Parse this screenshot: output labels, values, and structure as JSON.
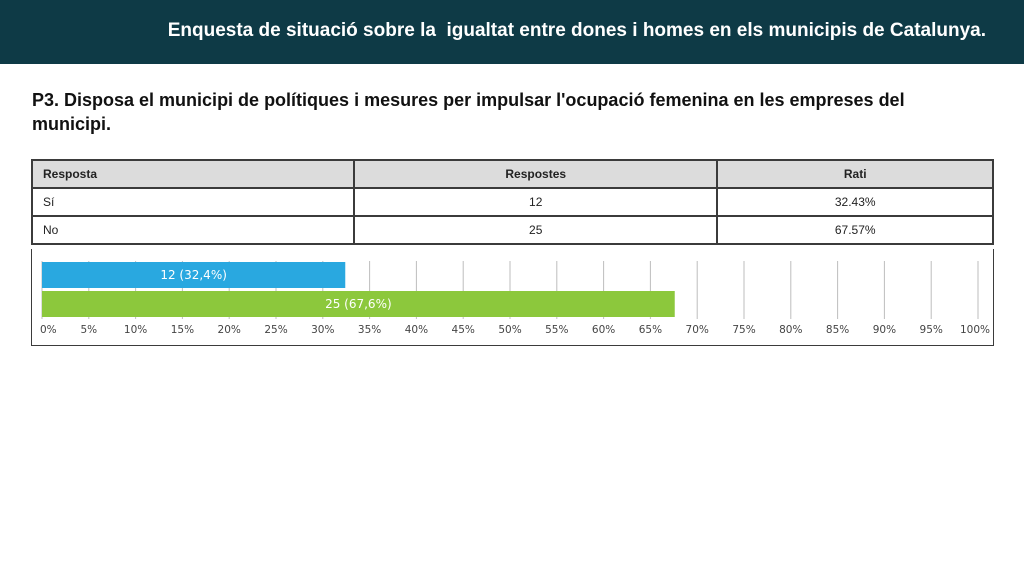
{
  "header": {
    "title": "Enquesta de situació sobre la  igualtat entre dones i homes en els municipis de Catalunya."
  },
  "question": "P3. Disposa el municipi de polítiques i mesures per impulsar l'ocupació femenina en les empreses del municipi.",
  "table": {
    "headers": [
      "Resposta",
      "Respostes",
      "Rati"
    ],
    "rows": [
      [
        "Sí",
        "12",
        "32.43%"
      ],
      [
        "No",
        "25",
        "67.57%"
      ]
    ]
  },
  "chart_data": {
    "type": "bar",
    "orientation": "horizontal",
    "categories": [
      "Sí",
      "No"
    ],
    "values": [
      32.4,
      67.6
    ],
    "counts": [
      12,
      25
    ],
    "data_labels": [
      "12 (32,4%)",
      "25 (67,6%)"
    ],
    "colors": [
      "#29a8e0",
      "#8cc83c"
    ],
    "xlim": [
      0,
      100
    ],
    "xticks": [
      "0%",
      "5%",
      "10%",
      "15%",
      "20%",
      "25%",
      "30%",
      "35%",
      "40%",
      "45%",
      "50%",
      "55%",
      "60%",
      "65%",
      "70%",
      "75%",
      "80%",
      "85%",
      "90%",
      "95%",
      "100%"
    ],
    "grid": true
  }
}
